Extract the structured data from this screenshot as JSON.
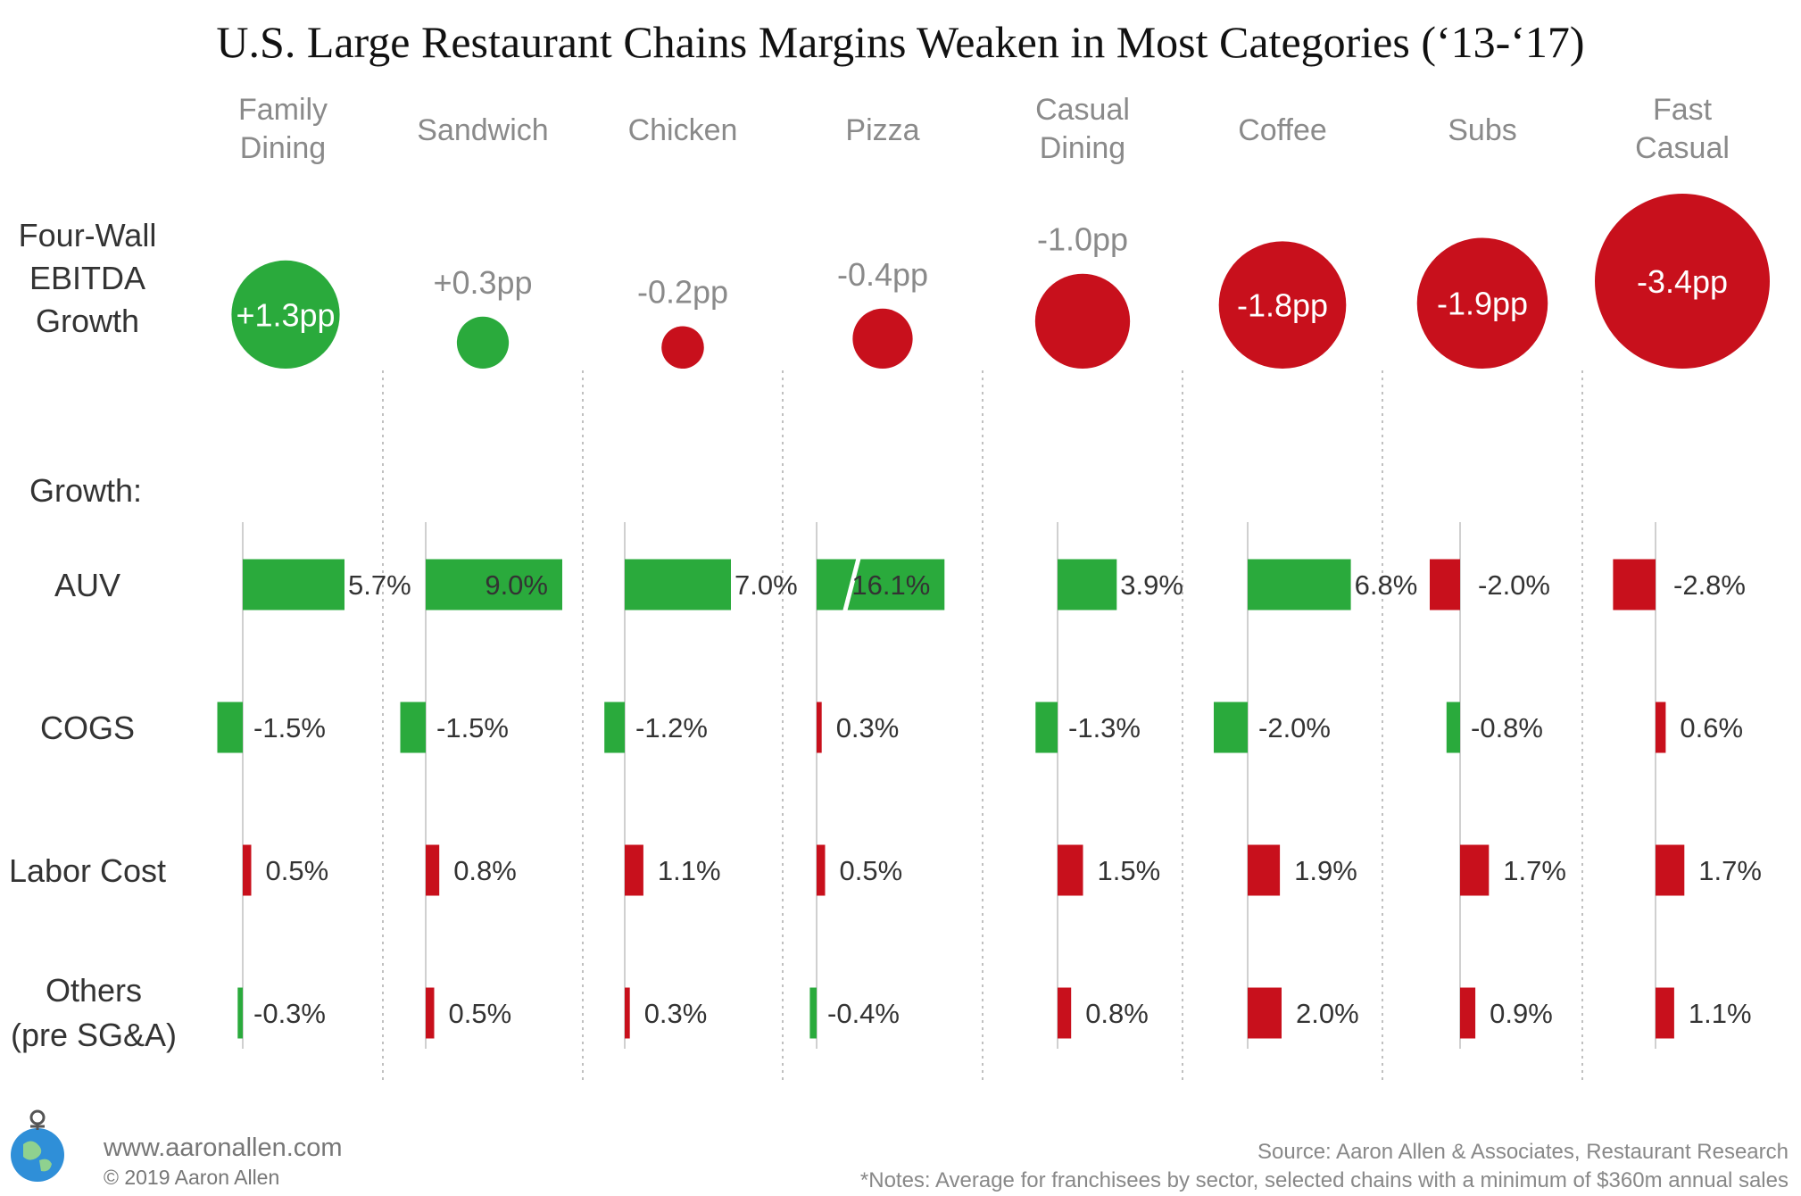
{
  "chart_data": {
    "type": "bar",
    "title": "U.S. Large Restaurant Chains Margins Weaken in Most Categories (‘13-‘17)",
    "categories": [
      [
        "Family",
        "Dining"
      ],
      [
        "Sandwich"
      ],
      [
        "Chicken"
      ],
      [
        "Pizza"
      ],
      [
        "Casual",
        "Dining"
      ],
      [
        "Coffee"
      ],
      [
        "Subs"
      ],
      [
        "Fast",
        "Casual"
      ]
    ],
    "ebitda": {
      "label_lines": [
        "Four-Wall",
        "EBITDA",
        "Growth"
      ],
      "unit": "pp",
      "values": [
        1.3,
        0.3,
        -0.2,
        -0.4,
        -1.0,
        -1.8,
        -1.9,
        -3.4
      ],
      "labels": [
        "+1.3pp",
        "+0.3pp",
        "-0.2pp",
        "-0.4pp",
        "-1.0pp",
        "-1.8pp",
        "-1.9pp",
        "-3.4pp"
      ]
    },
    "growth_header": "Growth:",
    "series": [
      {
        "name": "AUV",
        "label_lines": [
          "AUV"
        ],
        "values": [
          5.7,
          9.0,
          7.0,
          16.1,
          3.9,
          6.8,
          -2.0,
          -2.8
        ],
        "labels": [
          "5.7%",
          "9.0%",
          "7.0%",
          "16.1%",
          "3.9%",
          "6.8%",
          "-2.0%",
          "-2.8%"
        ],
        "colors": [
          "#2aaa3c",
          "#2aaa3c",
          "#2aaa3c",
          "#2aaa3c",
          "#2aaa3c",
          "#2aaa3c",
          "#c8101c",
          "#c8101c"
        ],
        "broken_axis": [
          false,
          false,
          false,
          true,
          false,
          false,
          false,
          false
        ]
      },
      {
        "name": "COGS",
        "label_lines": [
          "COGS"
        ],
        "values": [
          -1.5,
          -1.5,
          -1.2,
          0.3,
          -1.3,
          -2.0,
          -0.8,
          0.6
        ],
        "labels": [
          "-1.5%",
          "-1.5%",
          "-1.2%",
          "0.3%",
          "-1.3%",
          "-2.0%",
          "-0.8%",
          "0.6%"
        ],
        "colors": [
          "#2aaa3c",
          "#2aaa3c",
          "#2aaa3c",
          "#c8101c",
          "#2aaa3c",
          "#2aaa3c",
          "#2aaa3c",
          "#c8101c"
        ]
      },
      {
        "name": "Labor Cost",
        "label_lines": [
          "Labor Cost"
        ],
        "values": [
          0.5,
          0.8,
          1.1,
          0.5,
          1.5,
          1.9,
          1.7,
          1.7
        ],
        "labels": [
          "0.5%",
          "0.8%",
          "1.1%",
          "0.5%",
          "1.5%",
          "1.9%",
          "1.7%",
          "1.7%"
        ],
        "colors": [
          "#c8101c",
          "#c8101c",
          "#c8101c",
          "#c8101c",
          "#c8101c",
          "#c8101c",
          "#c8101c",
          "#c8101c"
        ]
      },
      {
        "name": "Others (pre SG&A)",
        "label_lines": [
          "Others",
          "(pre SG&A)"
        ],
        "values": [
          -0.3,
          0.5,
          0.3,
          -0.4,
          0.8,
          2.0,
          0.9,
          1.1
        ],
        "labels": [
          "-0.3%",
          "0.5%",
          "0.3%",
          "-0.4%",
          "0.8%",
          "2.0%",
          "0.9%",
          "1.1%"
        ],
        "colors": [
          "#2aaa3c",
          "#c8101c",
          "#c8101c",
          "#2aaa3c",
          "#c8101c",
          "#c8101c",
          "#c8101c",
          "#c8101c"
        ]
      }
    ],
    "colors": {
      "positive_margin": "#2aaa3c",
      "negative_margin": "#c8101c",
      "gridline": "#c0c0c0"
    }
  },
  "footer": {
    "website": "www.aaronallen.com",
    "copyright": "© 2019 Aaron Allen",
    "source": "Source: Aaron Allen & Associates, Restaurant Research",
    "notes": "*Notes: Average for franchisees by sector, selected chains with a minimum of $360m annual sales",
    "logo_icon": "globe-logo-icon"
  }
}
